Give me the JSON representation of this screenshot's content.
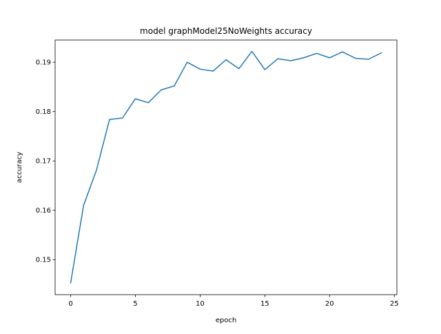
{
  "chart_data": {
    "type": "line",
    "title": "model graphModel25NoWeights accuracy",
    "xlabel": "epoch",
    "ylabel": "accuracy",
    "xlim": [
      -1.2,
      25.2
    ],
    "ylim": [
      0.1429,
      0.1945
    ],
    "xticks": [
      0,
      5,
      10,
      15,
      20,
      25
    ],
    "xtick_labels": [
      "0",
      "5",
      "10",
      "15",
      "20",
      "25"
    ],
    "yticks": [
      0.15,
      0.16,
      0.17,
      0.18,
      0.19
    ],
    "ytick_labels": [
      "0.15",
      "0.16",
      "0.17",
      "0.18",
      "0.19"
    ],
    "grid": false,
    "series": [
      {
        "color": "#1f77b4",
        "x": [
          0,
          1,
          2,
          3,
          4,
          5,
          6,
          7,
          8,
          9,
          10,
          11,
          12,
          13,
          14,
          15,
          16,
          17,
          18,
          19,
          20,
          21,
          22,
          23,
          24
        ],
        "y": [
          0.1453,
          0.161,
          0.1682,
          0.1784,
          0.1787,
          0.1826,
          0.1818,
          0.1844,
          0.1852,
          0.19,
          0.1886,
          0.1882,
          0.1905,
          0.1887,
          0.1922,
          0.1885,
          0.1907,
          0.1903,
          0.1909,
          0.1918,
          0.1909,
          0.1921,
          0.1908,
          0.1906,
          0.1919
        ]
      }
    ]
  }
}
